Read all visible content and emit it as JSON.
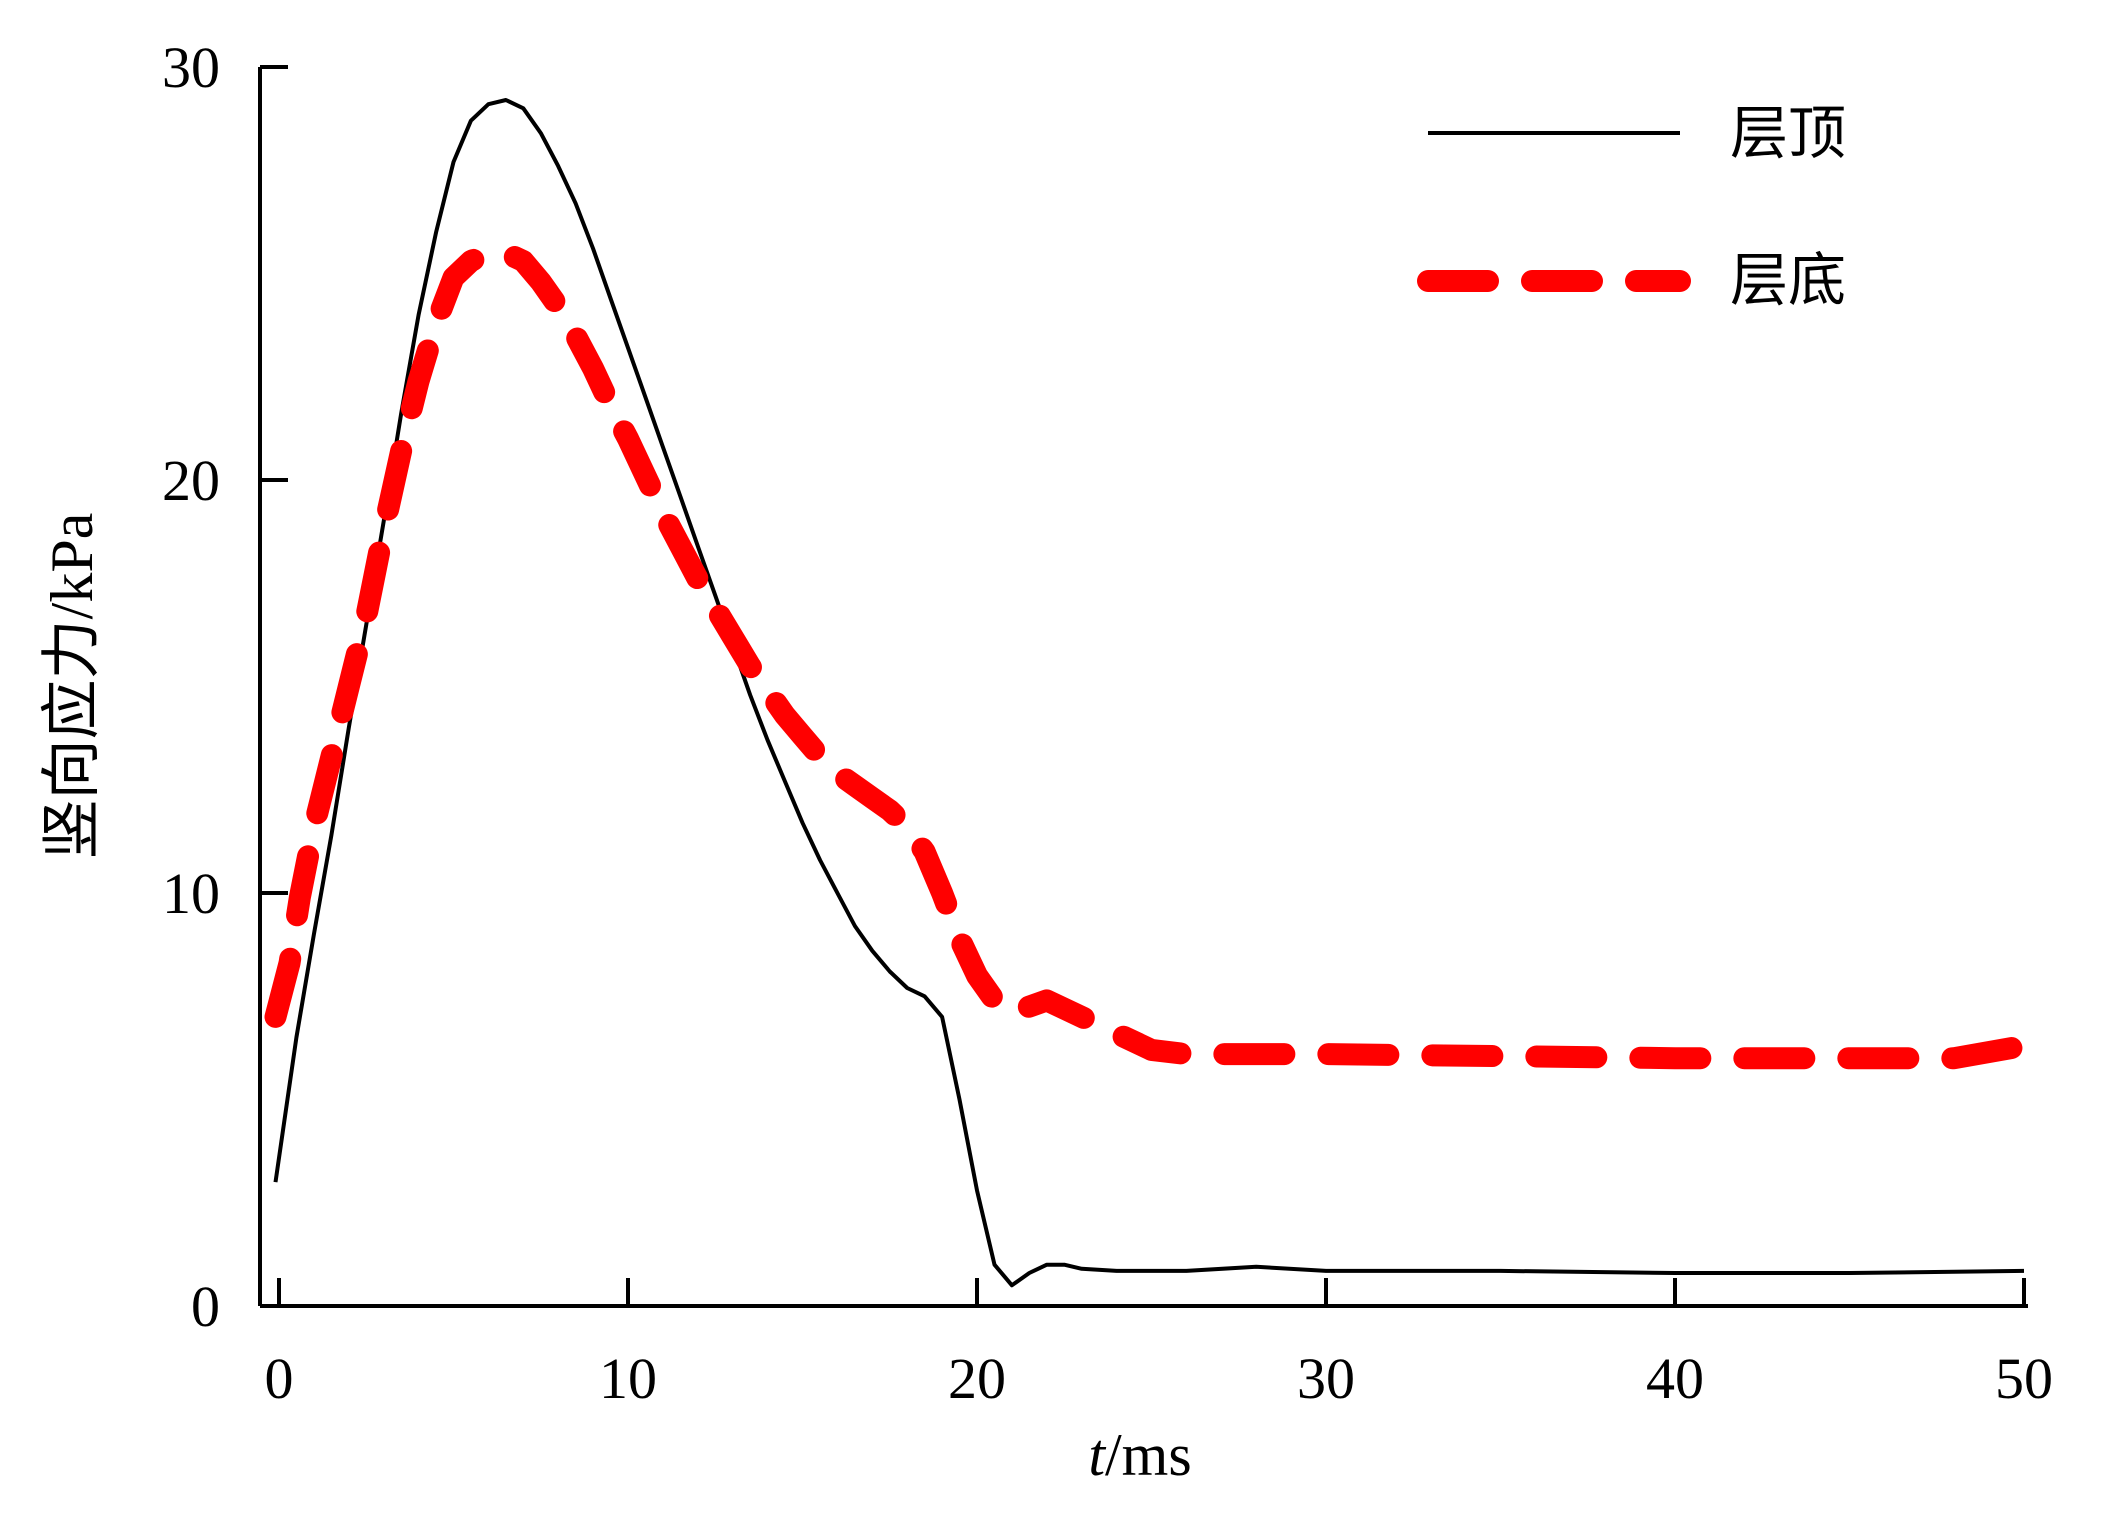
{
  "chart_data": {
    "type": "line",
    "xlabel_italic": "t",
    "xlabel_rest": "/ms",
    "ylabel": "竖向应力/kPa",
    "xlim": [
      -0.5,
      50
    ],
    "ylim": [
      0,
      30
    ],
    "x_ticks": [
      0,
      10,
      20,
      30,
      40,
      50
    ],
    "y_ticks": [
      0,
      10,
      20,
      30
    ],
    "x_tick_labels": [
      "0",
      "10",
      "20",
      "30",
      "40",
      "50"
    ],
    "y_tick_labels": [
      "0",
      "10",
      "20",
      "30"
    ],
    "grid": false,
    "legend_position": "top-right",
    "series": [
      {
        "name": "层顶",
        "color": "#000000",
        "style": "solid",
        "points": [
          [
            -0.1,
            3.0
          ],
          [
            0.5,
            6.5
          ],
          [
            1.0,
            9.0
          ],
          [
            1.5,
            11.4
          ],
          [
            2.0,
            14.0
          ],
          [
            2.5,
            16.5
          ],
          [
            3.0,
            19.0
          ],
          [
            3.5,
            21.6
          ],
          [
            4.0,
            24.0
          ],
          [
            4.5,
            26.0
          ],
          [
            5.0,
            27.7
          ],
          [
            5.5,
            28.7
          ],
          [
            6.0,
            29.1
          ],
          [
            6.5,
            29.2
          ],
          [
            7.0,
            29.0
          ],
          [
            7.5,
            28.4
          ],
          [
            8.0,
            27.6
          ],
          [
            8.5,
            26.7
          ],
          [
            9.0,
            25.6
          ],
          [
            9.5,
            24.4
          ],
          [
            10.0,
            23.2
          ],
          [
            10.5,
            22.0
          ],
          [
            11.0,
            20.8
          ],
          [
            11.5,
            19.6
          ],
          [
            12.0,
            18.4
          ],
          [
            12.5,
            17.2
          ],
          [
            13.0,
            16.0
          ],
          [
            13.5,
            14.8
          ],
          [
            14.0,
            13.7
          ],
          [
            14.5,
            12.7
          ],
          [
            15.0,
            11.7
          ],
          [
            15.5,
            10.8
          ],
          [
            16.0,
            10.0
          ],
          [
            16.5,
            9.2
          ],
          [
            17.0,
            8.6
          ],
          [
            17.5,
            8.1
          ],
          [
            18.0,
            7.7
          ],
          [
            18.5,
            7.5
          ],
          [
            19.0,
            7.0
          ],
          [
            19.5,
            5.0
          ],
          [
            20.0,
            2.8
          ],
          [
            20.5,
            1.0
          ],
          [
            21.0,
            0.5
          ],
          [
            21.5,
            0.8
          ],
          [
            22.0,
            1.0
          ],
          [
            22.5,
            1.0
          ],
          [
            23.0,
            0.9
          ],
          [
            24.0,
            0.85
          ],
          [
            26.0,
            0.85
          ],
          [
            28.0,
            0.95
          ],
          [
            30.0,
            0.85
          ],
          [
            35.0,
            0.85
          ],
          [
            40.0,
            0.8
          ],
          [
            45.0,
            0.8
          ],
          [
            50.0,
            0.85
          ]
        ]
      },
      {
        "name": "层底",
        "color": "#ff0000",
        "style": "dashed",
        "points": [
          [
            -0.1,
            7.0
          ],
          [
            0.3,
            8.3
          ],
          [
            0.6,
            9.9
          ],
          [
            1.0,
            11.6
          ],
          [
            1.5,
            13.3
          ],
          [
            2.0,
            15.0
          ],
          [
            2.5,
            16.7
          ],
          [
            3.0,
            18.8
          ],
          [
            3.5,
            20.7
          ],
          [
            4.0,
            22.4
          ],
          [
            4.5,
            23.8
          ],
          [
            5.0,
            24.9
          ],
          [
            5.5,
            25.3
          ],
          [
            6.0,
            25.5
          ],
          [
            6.5,
            25.5
          ],
          [
            7.0,
            25.3
          ],
          [
            7.5,
            24.8
          ],
          [
            8.0,
            24.2
          ],
          [
            8.5,
            23.5
          ],
          [
            9.0,
            22.7
          ],
          [
            9.5,
            21.8
          ],
          [
            10.0,
            21.0
          ],
          [
            10.5,
            20.1
          ],
          [
            11.0,
            19.2
          ],
          [
            11.5,
            18.4
          ],
          [
            12.0,
            17.6
          ],
          [
            12.5,
            16.9
          ],
          [
            13.0,
            16.2
          ],
          [
            13.5,
            15.5
          ],
          [
            14.0,
            14.9
          ],
          [
            14.5,
            14.3
          ],
          [
            15.0,
            13.8
          ],
          [
            15.5,
            13.3
          ],
          [
            16.0,
            12.9
          ],
          [
            16.5,
            12.6
          ],
          [
            17.0,
            12.3
          ],
          [
            17.5,
            12.0
          ],
          [
            18.0,
            11.6
          ],
          [
            18.5,
            11.0
          ],
          [
            19.0,
            10.0
          ],
          [
            19.5,
            8.9
          ],
          [
            20.0,
            8.0
          ],
          [
            20.5,
            7.4
          ],
          [
            21.0,
            7.1
          ],
          [
            22.0,
            7.4
          ],
          [
            23.0,
            7.0
          ],
          [
            24.0,
            6.6
          ],
          [
            25.0,
            6.2
          ],
          [
            26.0,
            6.1
          ],
          [
            28.0,
            6.1
          ],
          [
            30.0,
            6.1
          ],
          [
            35.0,
            6.05
          ],
          [
            40.0,
            6.0
          ],
          [
            45.0,
            6.0
          ],
          [
            48.0,
            6.0
          ],
          [
            50.0,
            6.3
          ]
        ]
      }
    ]
  }
}
